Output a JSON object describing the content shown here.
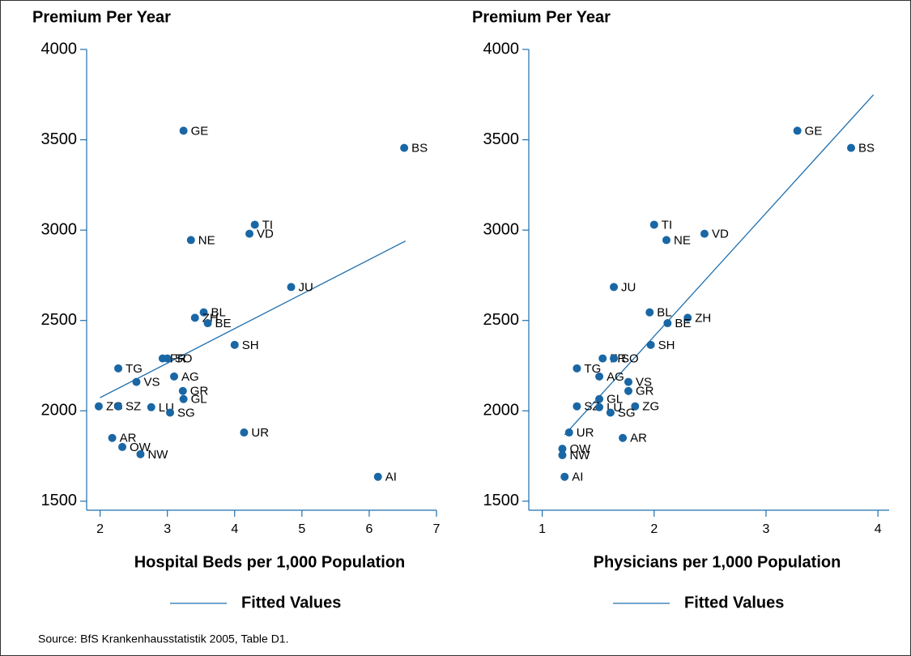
{
  "chart_data": [
    {
      "type": "scatter",
      "y_label": "Premium Per Year",
      "x_label": "Hospital Beds per 1,000 Population",
      "xlim": [
        1.8,
        7
      ],
      "xticks": [
        2,
        3,
        4,
        5,
        6,
        7
      ],
      "ylim": [
        1450,
        4000
      ],
      "yticks": [
        1500,
        2000,
        2500,
        3000,
        3500,
        4000
      ],
      "points": {
        "color": "#1a67a5",
        "labels": [
          "GE",
          "BS",
          "TI",
          "VD",
          "NE",
          "JU",
          "BL",
          "ZH",
          "BE",
          "SH",
          "FR",
          "SO",
          "TG",
          "AG",
          "VS",
          "GR",
          "GL",
          "ZG",
          "SZ",
          "LU",
          "SG",
          "UR",
          "AR",
          "OW",
          "NW",
          "AI"
        ],
        "x": [
          3.24,
          6.52,
          4.3,
          4.22,
          3.35,
          4.84,
          3.54,
          3.41,
          3.6,
          4.0,
          2.93,
          3.0,
          2.27,
          3.1,
          2.54,
          3.23,
          3.24,
          1.98,
          2.27,
          2.76,
          3.04,
          4.14,
          2.18,
          2.33,
          2.6,
          6.13
        ],
        "values": [
          3550,
          3455,
          3030,
          2980,
          2945,
          2685,
          2545,
          2515,
          2485,
          2365,
          2290,
          2290,
          2235,
          2190,
          2160,
          2110,
          2065,
          2025,
          2025,
          2020,
          1990,
          1880,
          1850,
          1800,
          1760,
          1635
        ]
      },
      "fit": {
        "name": "Fitted Values",
        "color": "#1f6fae",
        "x": [
          2,
          6.54
        ],
        "values": [
          2073,
          2940
        ]
      }
    },
    {
      "type": "scatter",
      "y_label": "Premium Per Year",
      "x_label": "Physicians per 1,000 Population",
      "xlim": [
        0.88,
        4.1
      ],
      "xticks": [
        1,
        2,
        3,
        4
      ],
      "ylim": [
        1450,
        4000
      ],
      "yticks": [
        1500,
        2000,
        2500,
        3000,
        3500,
        4000
      ],
      "points": {
        "color": "#1a67a5",
        "labels": [
          "GE",
          "BS",
          "TI",
          "VD",
          "NE",
          "JU",
          "BL",
          "ZH",
          "BE",
          "SH",
          "FR",
          "SO",
          "TG",
          "AG",
          "VS",
          "GR",
          "GL",
          "ZG",
          "SZ",
          "LU",
          "SG",
          "UR",
          "AR",
          "OW",
          "NW",
          "AI"
        ],
        "x": [
          3.28,
          3.76,
          2.0,
          2.45,
          2.11,
          1.64,
          1.96,
          2.3,
          2.12,
          1.97,
          1.54,
          1.64,
          1.31,
          1.51,
          1.77,
          1.77,
          1.51,
          1.83,
          1.31,
          1.51,
          1.61,
          1.24,
          1.72,
          1.18,
          1.18,
          1.2
        ],
        "values": [
          3550,
          3455,
          3030,
          2980,
          2945,
          2685,
          2545,
          2515,
          2485,
          2365,
          2290,
          2290,
          2235,
          2190,
          2160,
          2110,
          2065,
          2025,
          2025,
          2020,
          1990,
          1880,
          1850,
          1790,
          1755,
          1635
        ]
      },
      "fit": {
        "name": "Fitted Values",
        "color": "#1f6fae",
        "x": [
          1.2,
          3.96
        ],
        "values": [
          1867,
          3749
        ]
      }
    }
  ],
  "source": "Source: BfS Krankenhausstatistik 2005, Table D1."
}
